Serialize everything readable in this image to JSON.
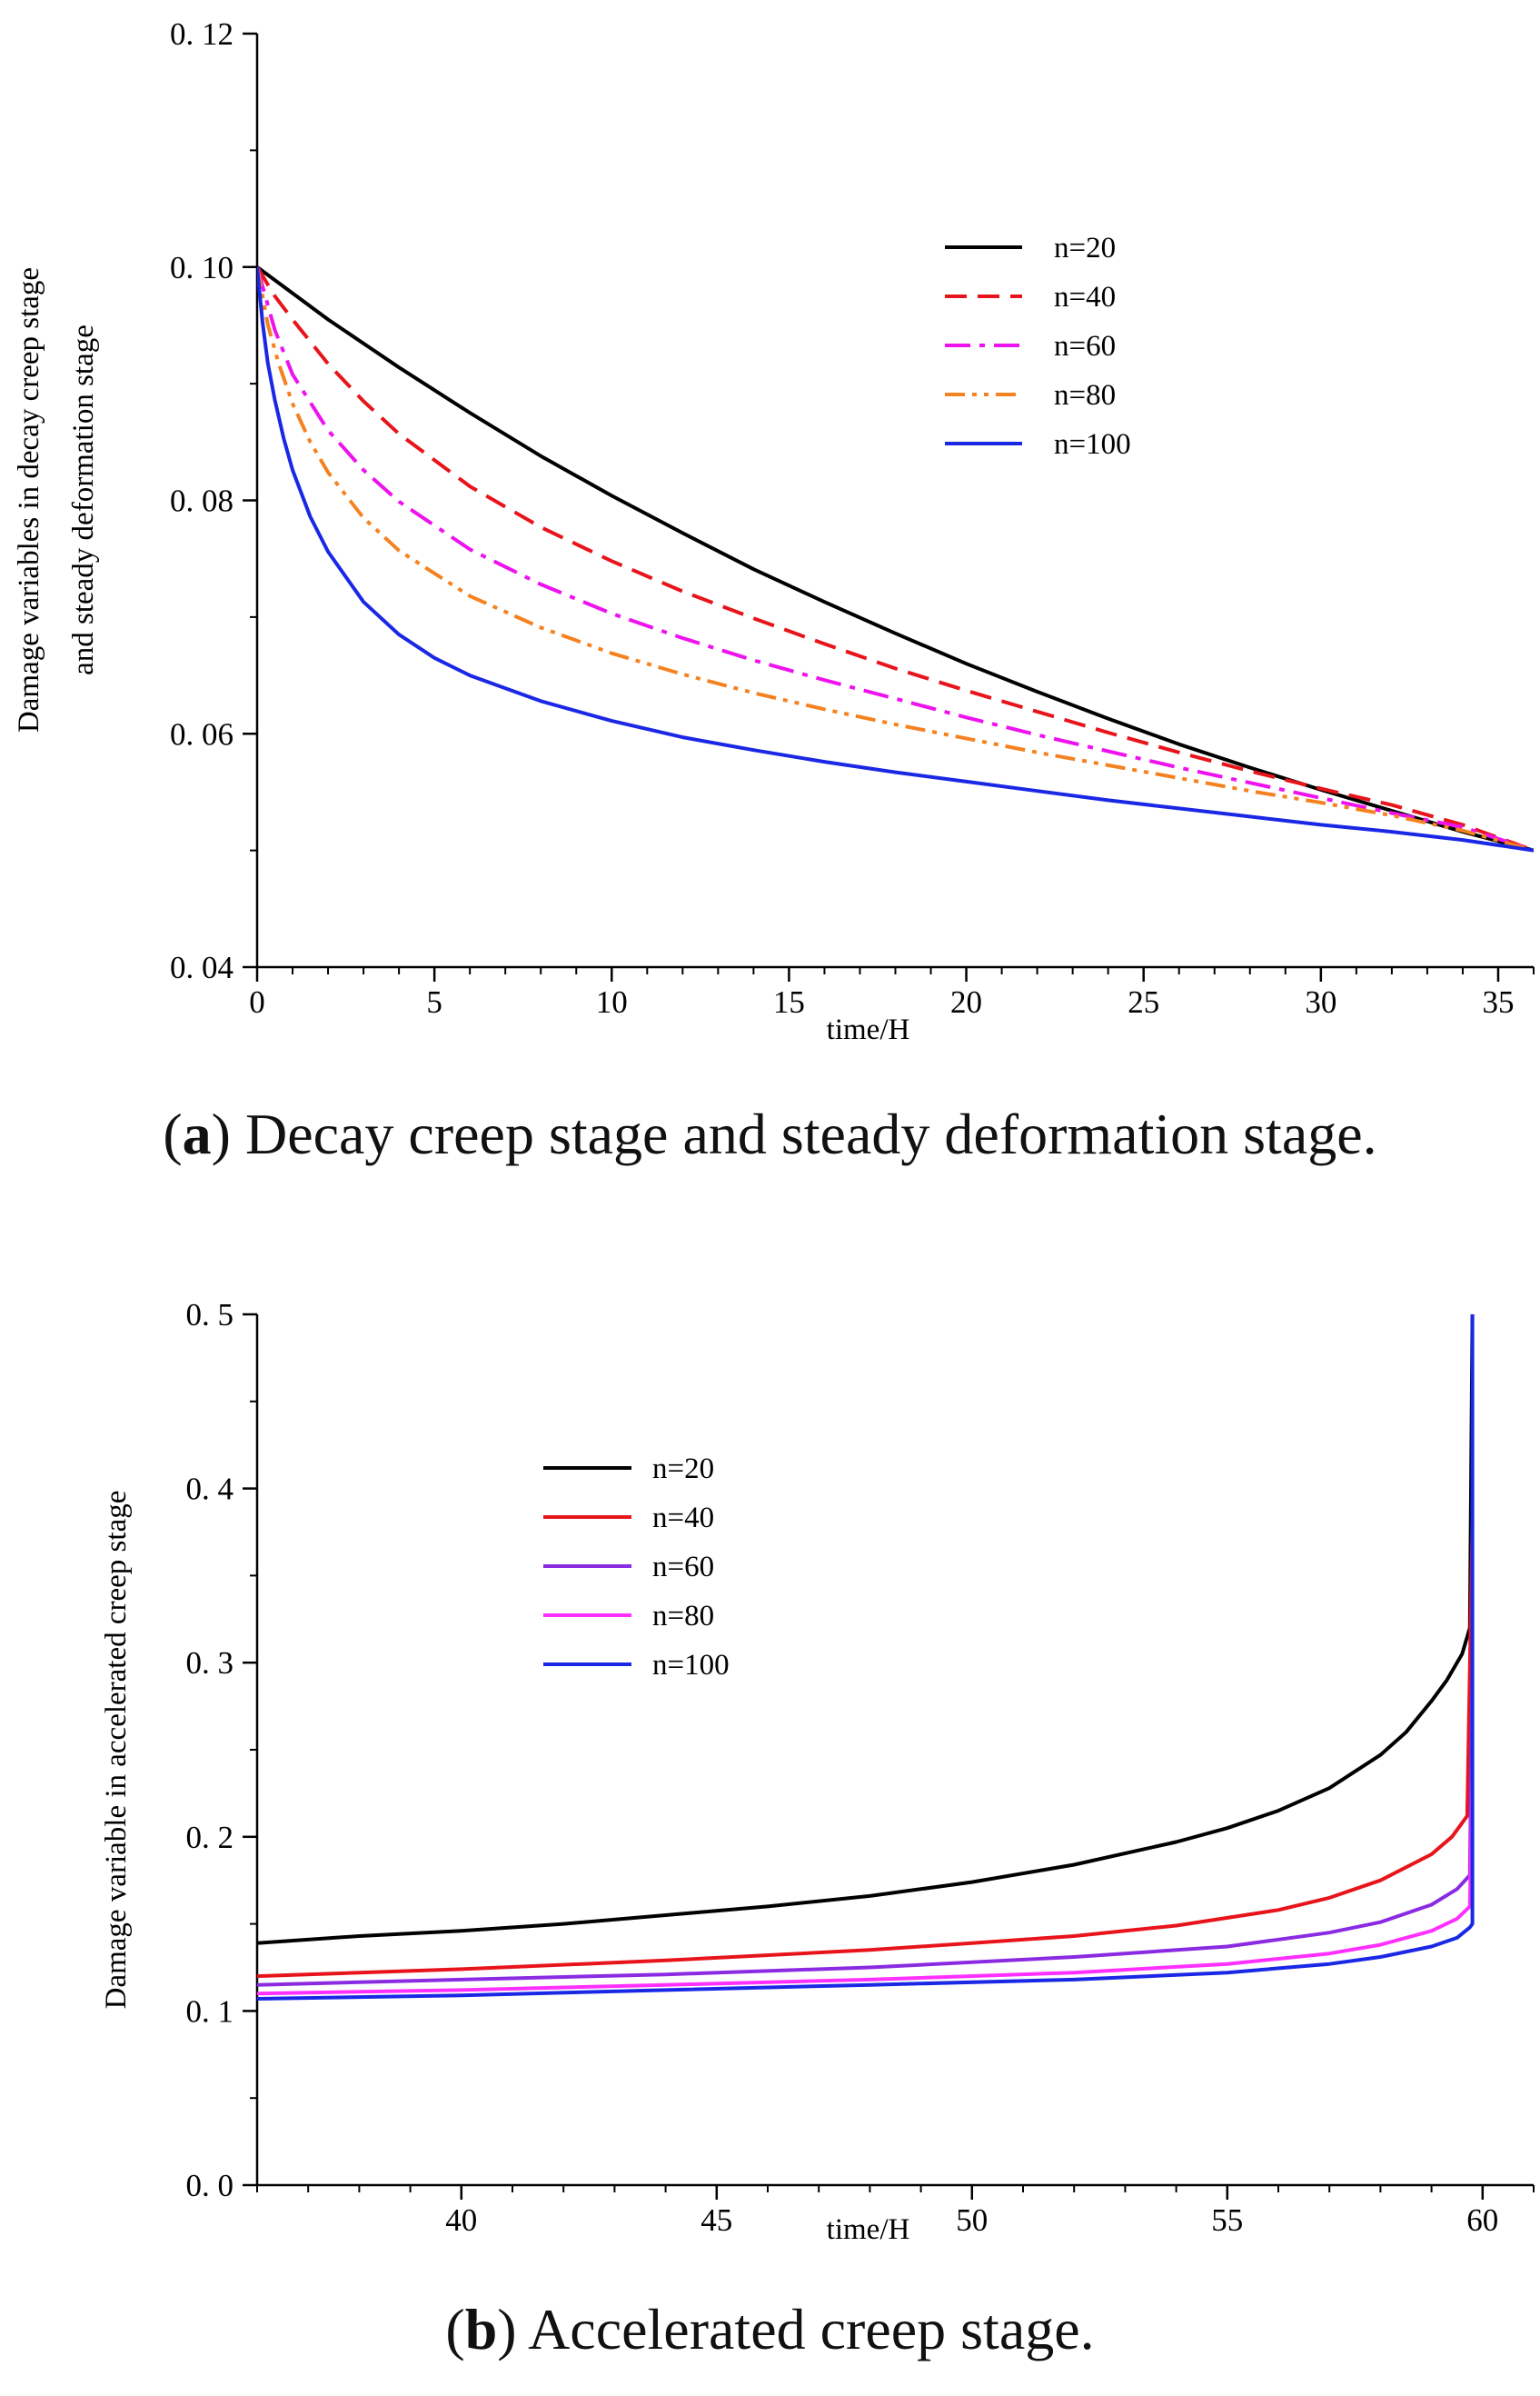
{
  "chart_data": [
    {
      "id": "a",
      "type": "line",
      "caption": {
        "prefix": "(",
        "letter": "a",
        "suffix": ") ",
        "text": "Decay creep stage and steady deformation stage."
      },
      "xlabel": "time/H",
      "ylabel_lines": [
        "Damage variables in decay creep stage",
        "and steady deformation stage"
      ],
      "xlim": [
        0,
        36
      ],
      "ylim": [
        0.04,
        0.12
      ],
      "xticks": [
        0,
        5,
        10,
        15,
        20,
        25,
        30,
        35
      ],
      "xtick_labels": [
        "0",
        "5",
        "10",
        "15",
        "20",
        "25",
        "30",
        "35"
      ],
      "yticks": [
        0.04,
        0.06,
        0.08,
        0.1,
        0.12
      ],
      "ytick_labels": [
        "0. 04",
        "0. 06",
        "0. 08",
        "0. 10",
        "0. 12"
      ],
      "legend_position": "top-right",
      "series": [
        {
          "name": "n=20",
          "color": "#000000",
          "dash": "solid",
          "x": [
            0,
            2,
            4,
            6,
            8,
            10,
            12,
            14,
            16,
            18,
            20,
            22,
            24,
            26,
            28,
            30,
            32,
            34,
            36
          ],
          "y": [
            0.1,
            0.0955,
            0.0914,
            0.0875,
            0.0838,
            0.0804,
            0.0772,
            0.0741,
            0.0713,
            0.0686,
            0.066,
            0.0636,
            0.0613,
            0.0591,
            0.0571,
            0.0552,
            0.0534,
            0.0516,
            0.05
          ]
        },
        {
          "name": "n=40",
          "color": "#e8141b",
          "dash": "dashed",
          "x": [
            0,
            0.5,
            1,
            2,
            3,
            4,
            6,
            8,
            10,
            12,
            14,
            16,
            18,
            20,
            22,
            24,
            26,
            28,
            30,
            32,
            34,
            36
          ],
          "y": [
            0.1,
            0.0975,
            0.0955,
            0.0917,
            0.0885,
            0.0857,
            0.0812,
            0.0777,
            0.0748,
            0.0722,
            0.0699,
            0.0677,
            0.0656,
            0.0637,
            0.0619,
            0.0601,
            0.0584,
            0.0568,
            0.0553,
            0.0539,
            0.0522,
            0.05
          ]
        },
        {
          "name": "n=60",
          "color": "#ee12ee",
          "dash": "dashdot",
          "x": [
            0,
            0.5,
            1,
            2,
            3,
            4,
            6,
            8,
            10,
            12,
            14,
            16,
            18,
            20,
            22,
            24,
            26,
            28,
            30,
            32,
            34,
            36
          ],
          "y": [
            0.1,
            0.0946,
            0.0908,
            0.086,
            0.0826,
            0.0799,
            0.0758,
            0.0728,
            0.0703,
            0.0682,
            0.0663,
            0.0646,
            0.063,
            0.0614,
            0.0599,
            0.0585,
            0.0571,
            0.0558,
            0.0545,
            0.0532,
            0.052,
            0.05
          ]
        },
        {
          "name": "n=80",
          "color": "#f58220",
          "dash": "dashdotdot",
          "x": [
            0,
            0.3,
            0.6,
            1,
            1.5,
            2,
            3,
            4,
            6,
            8,
            10,
            12,
            14,
            16,
            18,
            20,
            22,
            24,
            26,
            28,
            30,
            32,
            34,
            36
          ],
          "y": [
            0.1,
            0.0951,
            0.0918,
            0.0883,
            0.085,
            0.0824,
            0.0785,
            0.0757,
            0.0718,
            0.0691,
            0.0669,
            0.0651,
            0.0635,
            0.0621,
            0.0608,
            0.0596,
            0.0584,
            0.0573,
            0.0562,
            0.0551,
            0.0541,
            0.053,
            0.0517,
            0.05
          ]
        },
        {
          "name": "n=100",
          "color": "#1a28e6",
          "dash": "solid",
          "x": [
            0,
            0.15,
            0.3,
            0.5,
            0.75,
            1,
            1.5,
            2,
            3,
            4,
            5,
            6,
            8,
            10,
            12,
            14,
            16,
            18,
            20,
            22,
            24,
            26,
            28,
            30,
            32,
            34,
            36
          ],
          "y": [
            0.1,
            0.0953,
            0.0918,
            0.0886,
            0.0853,
            0.0826,
            0.0786,
            0.0756,
            0.0713,
            0.0685,
            0.0665,
            0.065,
            0.0628,
            0.0611,
            0.0597,
            0.0586,
            0.0576,
            0.0567,
            0.0559,
            0.0551,
            0.0543,
            0.0536,
            0.0529,
            0.0522,
            0.0516,
            0.0509,
            0.05
          ]
        }
      ]
    },
    {
      "id": "b",
      "type": "line",
      "caption": {
        "prefix": "(",
        "letter": "b",
        "suffix": ") ",
        "text": "Accelerated creep stage."
      },
      "xlabel": "time/H",
      "ylabel_lines": [
        "Damage variable in accelerated creep stage"
      ],
      "xlim": [
        36,
        61
      ],
      "ylim": [
        0.0,
        0.5
      ],
      "xticks": [
        40,
        45,
        50,
        55,
        60
      ],
      "xtick_labels": [
        "40",
        "45",
        "50",
        "55",
        "60"
      ],
      "yticks": [
        0.0,
        0.1,
        0.2,
        0.3,
        0.4,
        0.5
      ],
      "ytick_labels": [
        "0. 0",
        "0. 1",
        "0. 2",
        "0. 3",
        "0. 4",
        "0. 5"
      ],
      "legend_position": "top-left",
      "series": [
        {
          "name": "n=20",
          "color": "#000000",
          "dash": "solid",
          "x": [
            36,
            38,
            40,
            42,
            44,
            46,
            48,
            50,
            52,
            54,
            55,
            56,
            57,
            58,
            58.5,
            59,
            59.3,
            59.6,
            59.75,
            59.8
          ],
          "y": [
            0.139,
            0.143,
            0.146,
            0.15,
            0.155,
            0.16,
            0.166,
            0.174,
            0.184,
            0.197,
            0.205,
            0.215,
            0.228,
            0.247,
            0.26,
            0.278,
            0.29,
            0.305,
            0.32,
            0.5
          ]
        },
        {
          "name": "n=40",
          "color": "#e8141b",
          "dash": "solid",
          "x": [
            36,
            40,
            44,
            48,
            50,
            52,
            54,
            56,
            57,
            58,
            59,
            59.4,
            59.7,
            59.8
          ],
          "y": [
            0.12,
            0.124,
            0.129,
            0.135,
            0.139,
            0.143,
            0.149,
            0.158,
            0.165,
            0.175,
            0.19,
            0.2,
            0.212,
            0.38
          ]
        },
        {
          "name": "n=60",
          "color": "#8a2be2",
          "dash": "solid",
          "x": [
            36,
            40,
            44,
            48,
            52,
            55,
            57,
            58,
            59,
            59.5,
            59.75,
            59.8
          ],
          "y": [
            0.115,
            0.118,
            0.121,
            0.125,
            0.131,
            0.137,
            0.145,
            0.151,
            0.161,
            0.17,
            0.178,
            0.3
          ]
        },
        {
          "name": "n=80",
          "color": "#ff30ff",
          "dash": "solid",
          "x": [
            36,
            40,
            44,
            48,
            52,
            55,
            57,
            58,
            59,
            59.5,
            59.75,
            59.8
          ],
          "y": [
            0.11,
            0.112,
            0.115,
            0.118,
            0.122,
            0.127,
            0.133,
            0.138,
            0.146,
            0.153,
            0.16,
            0.24
          ]
        },
        {
          "name": "n=100",
          "color": "#1a28e6",
          "dash": "solid",
          "x": [
            36,
            40,
            44,
            48,
            52,
            55,
            57,
            58,
            59,
            59.5,
            59.75,
            59.8,
            59.8
          ],
          "y": [
            0.107,
            0.109,
            0.112,
            0.115,
            0.118,
            0.122,
            0.127,
            0.131,
            0.137,
            0.142,
            0.148,
            0.15,
            0.5
          ]
        }
      ]
    }
  ]
}
